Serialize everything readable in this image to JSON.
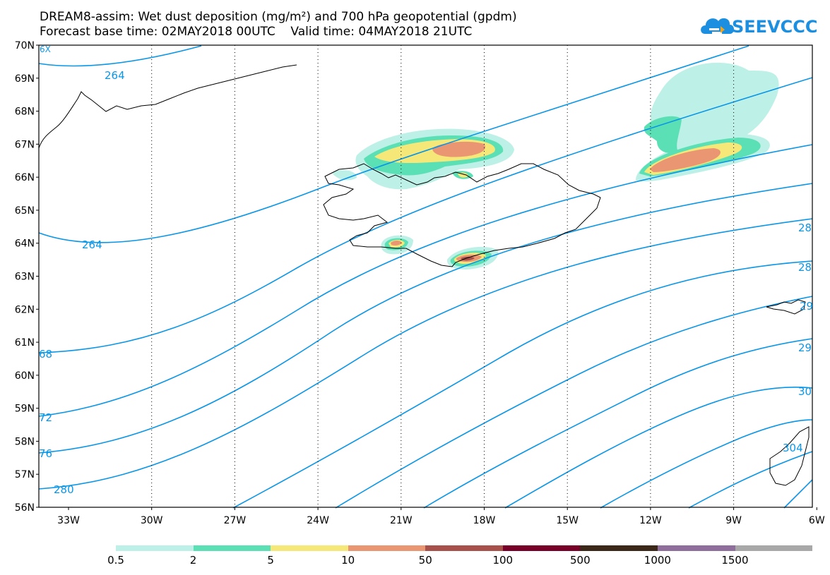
{
  "title_line1": "DREAM8-assim: Wet dust deposition (mg/m²) and 700 hPa geopotential (gpdm)",
  "title_line2": "Forecast base time: 02MAY2018 00UTC    Valid time: 04MAY2018 21UTC",
  "logo_text": "SEEVCCC",
  "colors": {
    "contour": "#0a96e8",
    "coast": "#000000",
    "grid": "#000000"
  },
  "lat_labels": [
    "70N",
    "69N",
    "68N",
    "67N",
    "66N",
    "65N",
    "64N",
    "63N",
    "62N",
    "61N",
    "60N",
    "59N",
    "58N",
    "57N",
    "56N"
  ],
  "lon_labels": [
    "33W",
    "30W",
    "27W",
    "24W",
    "21W",
    "18W",
    "15W",
    "12W",
    "9W",
    "6W"
  ],
  "contour_labels": {
    "c264a": "264",
    "c264b": "264",
    "c268": "68",
    "c272": "72",
    "c276": "76",
    "c280": "280",
    "r284a": "28",
    "r284b": "28",
    "r292a": "29",
    "r292b": "29",
    "r300": "30",
    "r304": "304",
    "tl": "6X"
  },
  "legend": {
    "colors": [
      "#bdf0e6",
      "#5ae0b4",
      "#f5e878",
      "#eb9673",
      "#a8504a",
      "#780028",
      "#3c2819",
      "#8f6e9c",
      "#a8a8a8"
    ],
    "labels": [
      "0.5",
      "2",
      "5",
      "10",
      "50",
      "100",
      "500",
      "1000",
      "1500"
    ]
  }
}
